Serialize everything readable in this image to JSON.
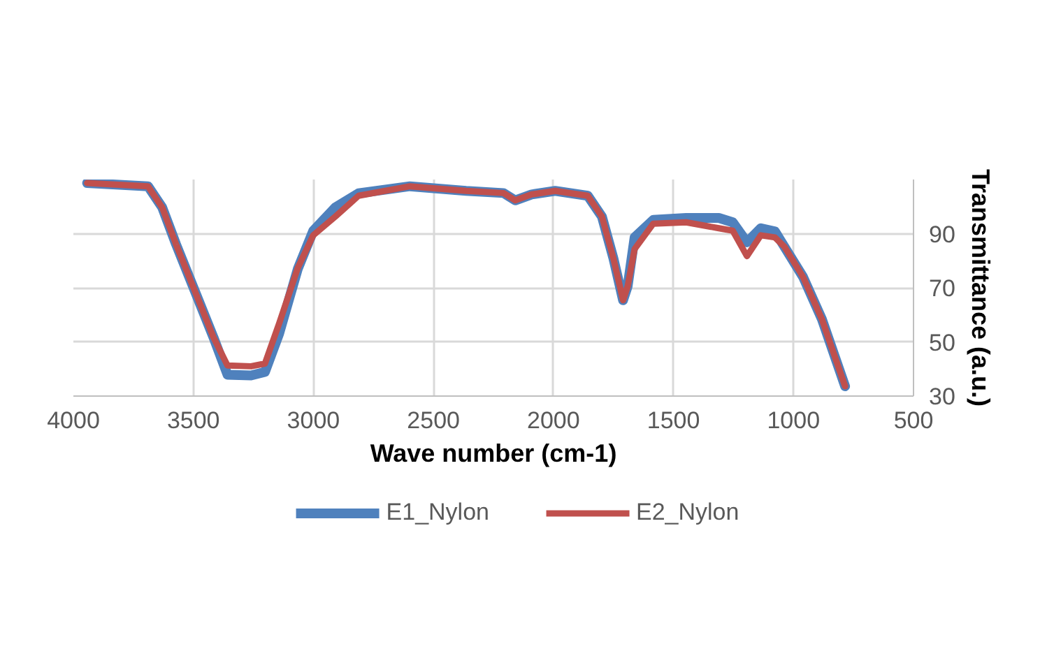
{
  "chart_data": {
    "type": "line",
    "xlabel": "Wave number (cm-1)",
    "ylabel": "Transmittance (a.u.)",
    "x": [
      3943,
      3689,
      3630,
      3572,
      3494,
      3416,
      3358,
      3260,
      3202,
      3143,
      3065,
      3001,
      2909,
      2812,
      2598,
      2364,
      2208,
      2159,
      2091,
      1993,
      1857,
      1798,
      1750,
      1710,
      1691,
      1662,
      1584,
      1447,
      1311,
      1253,
      1194,
      1136,
      1077,
      1038,
      960,
      882,
      785
    ],
    "series": [
      {
        "name": "E1_Nylon",
        "color": "#4f81bd",
        "values": [
          108.7,
          107.5,
          99.7,
          86,
          68.8,
          51.6,
          37.9,
          37.6,
          38.9,
          53,
          77,
          91,
          99.7,
          104.9,
          107.5,
          105.8,
          105,
          102.3,
          104.5,
          105.8,
          104,
          96.3,
          80.8,
          65.4,
          70.5,
          88.6,
          95.1,
          95.8,
          95.8,
          94.2,
          86.8,
          92,
          90.8,
          85.2,
          74,
          58.5,
          33.6
        ]
      },
      {
        "name": "E2_Nylon",
        "color": "#c0504d",
        "values": [
          108.7,
          107.5,
          99.7,
          86,
          68.8,
          51.6,
          41.3,
          41,
          42,
          56.8,
          77.4,
          89.4,
          96.3,
          104,
          107.5,
          105.8,
          105,
          102.3,
          104.5,
          105.8,
          104,
          96.3,
          80.8,
          65.4,
          70.5,
          84.3,
          93.7,
          94.2,
          92,
          91.1,
          81.7,
          89.4,
          88.6,
          85.2,
          74,
          58.5,
          33.6
        ]
      }
    ],
    "xlim": [
      4000,
      500
    ],
    "xticks": [
      4000,
      3500,
      3000,
      2500,
      2000,
      1500,
      1000,
      500
    ],
    "ylim": [
      30,
      110
    ],
    "yticks": [
      30,
      50,
      70,
      90
    ],
    "grid": true,
    "legend": "bottom"
  }
}
